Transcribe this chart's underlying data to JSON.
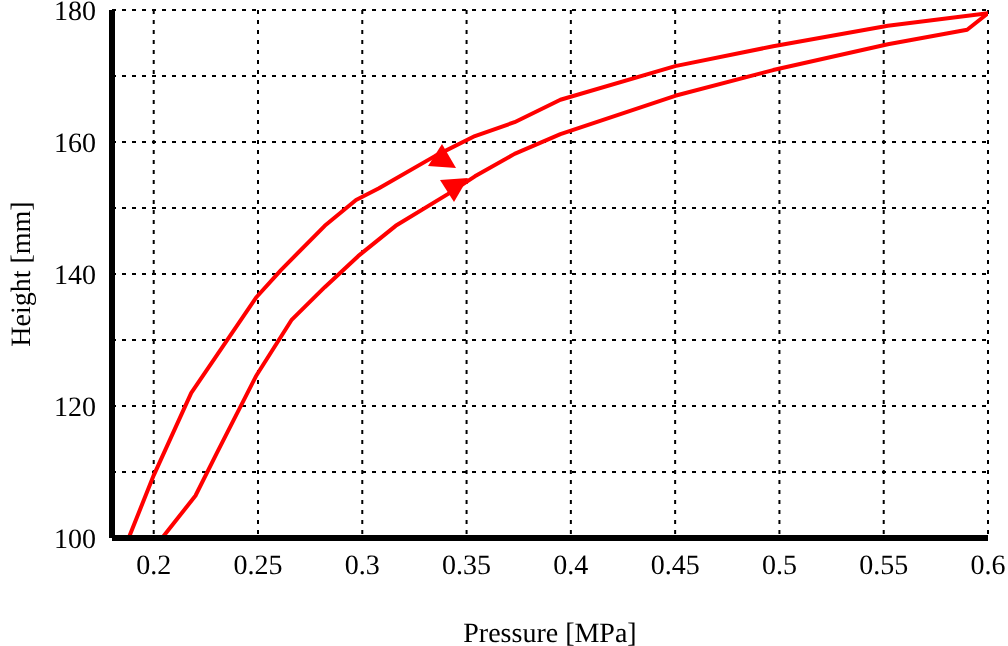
{
  "chart_data": {
    "type": "line",
    "xlabel": "Pressure [MPa]",
    "ylabel": "Height [mm]",
    "xlim": [
      0.18,
      0.6
    ],
    "xticks": [
      0.2,
      0.25,
      0.3,
      0.35,
      0.4,
      0.45,
      0.5,
      0.55,
      0.6
    ],
    "ylim": [
      100,
      180
    ],
    "yticks": [
      100,
      {
        "value": 110,
        "label": null
      },
      120,
      {
        "value": 130,
        "label": null
      },
      140,
      {
        "value": 150,
        "label": null
      },
      160,
      {
        "value": 170,
        "label": null
      },
      180
    ],
    "grid": true,
    "legend": false,
    "marker": "none",
    "line_style": "solid",
    "series": [
      {
        "color": "#ff0000",
        "x": [
          0.188,
          0.2,
          0.218,
          0.249,
          0.261,
          0.282,
          0.297,
          0.308,
          0.335,
          0.354,
          0.373,
          0.395,
          0.45,
          0.497,
          0.552,
          0.6
        ],
        "values": [
          100,
          109.5,
          122,
          136.4,
          140.6,
          147.3,
          151.2,
          153,
          157.9,
          160.9,
          163,
          166.4,
          171.5,
          174.5,
          177.6,
          179.5
        ]
      },
      {
        "color": "#ff0000",
        "x": [
          0.188,
          0.204,
          0.22,
          0.23,
          0.249,
          0.266,
          0.282,
          0.298,
          0.316,
          0.341,
          0.354,
          0.373,
          0.395,
          0.45,
          0.497,
          0.552,
          0.59,
          0.6
        ],
        "values": [
          100,
          100,
          106.4,
          112.7,
          124.5,
          133,
          138,
          142.7,
          147.3,
          152.1,
          154.8,
          158.2,
          161.2,
          167,
          170.9,
          174.8,
          177,
          179.5
        ]
      }
    ]
  }
}
